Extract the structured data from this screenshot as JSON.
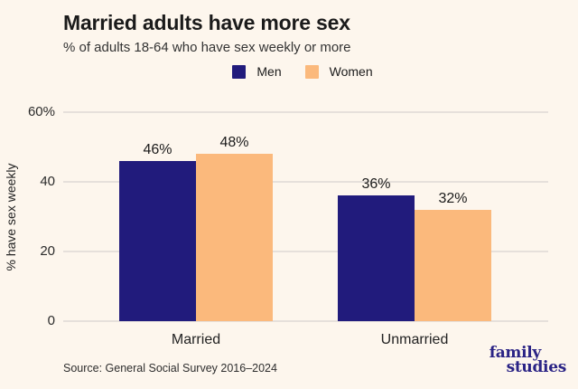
{
  "header": {
    "title": "Married adults have more sex",
    "subtitle": "% of adults 18-64 who have sex weekly or more"
  },
  "chart_data": {
    "type": "bar",
    "title": "Married adults have more sex",
    "subtitle": "% of adults 18-64 who have sex weekly or more",
    "categories": [
      "Married",
      "Unmarried"
    ],
    "series": [
      {
        "name": "Men",
        "color": "#211b7c",
        "values": [
          46,
          36
        ],
        "labels": [
          "46%",
          "36%"
        ]
      },
      {
        "name": "Women",
        "color": "#fbb97c",
        "values": [
          48,
          32
        ],
        "labels": [
          "48%",
          "32%"
        ]
      }
    ],
    "xlabel": "",
    "ylabel": "% have sex weekly",
    "ylim": [
      0,
      60
    ],
    "yticks": [
      {
        "value": 0,
        "label": "0"
      },
      {
        "value": 20,
        "label": "20"
      },
      {
        "value": 40,
        "label": "40"
      },
      {
        "value": 60,
        "label": "60%"
      }
    ],
    "grid": true,
    "legend_position": "top-center"
  },
  "footer": {
    "source": "Source: General Social Survey 2016–2024",
    "logo_line1": "family",
    "logo_line2": "studies"
  },
  "colors": {
    "background": "#fdf6ed",
    "men_bar": "#211b7c",
    "women_bar": "#fbb97c",
    "gridline": "#e6e0db",
    "logo": "#2a2385",
    "title_text": "#1b1b1b"
  }
}
